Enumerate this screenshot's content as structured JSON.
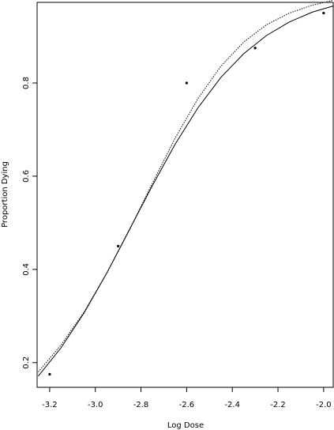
{
  "chart_data": {
    "type": "scatter",
    "x_label": "Log Dose",
    "y_label": "Proportion Dying",
    "xlim": [
      -3.255,
      -1.958
    ],
    "ylim": [
      0.147,
      0.973
    ],
    "xticks": [
      -3.2,
      {
        "value": -3,
        "label": "-3.0"
      },
      -2.8,
      -2.6,
      -2.4,
      -2.2,
      {
        "value": -2,
        "label": "-2.0"
      }
    ],
    "yticks": [
      0.2,
      0.4,
      0.6,
      0.8
    ],
    "series": [
      {
        "mode": "points",
        "color": "#000000",
        "x": [
          -3.2,
          -2.9,
          -2.6,
          -2.3,
          -2.0
        ],
        "values": [
          0.175,
          0.45,
          0.8,
          0.875,
          0.95
        ]
      },
      {
        "mode": "line",
        "dash": "solid",
        "color": "#000000",
        "x": [
          -3.25,
          -3.15,
          -3.05,
          -2.95,
          -2.85,
          -2.75,
          -2.65,
          -2.55,
          -2.45,
          -2.35,
          -2.25,
          -2.15,
          -2.05,
          -1.96
        ],
        "values": [
          0.171,
          0.232,
          0.306,
          0.392,
          0.486,
          0.58,
          0.669,
          0.747,
          0.812,
          0.863,
          0.902,
          0.931,
          0.952,
          0.965
        ]
      },
      {
        "mode": "line",
        "dash": "dotted",
        "color": "#000000",
        "x": [
          -3.25,
          -3.15,
          -3.05,
          -2.95,
          -2.85,
          -2.75,
          -2.65,
          -2.55,
          -2.45,
          -2.35,
          -2.25,
          -2.15,
          -2.05,
          -1.96
        ],
        "values": [
          0.18,
          0.238,
          0.308,
          0.392,
          0.485,
          0.585,
          0.682,
          0.767,
          0.836,
          0.888,
          0.925,
          0.95,
          0.967,
          0.977
        ]
      }
    ]
  }
}
